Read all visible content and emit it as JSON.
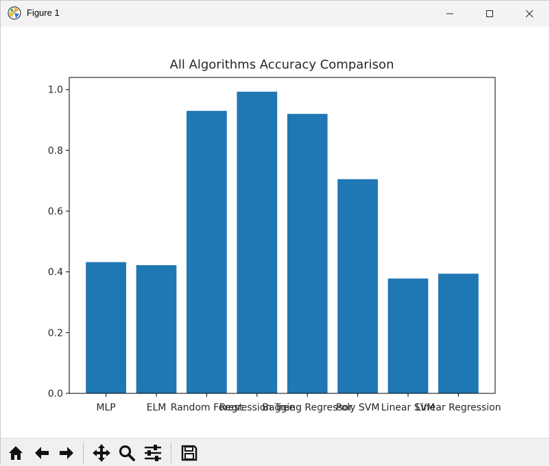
{
  "window": {
    "title": "Figure 1"
  },
  "toolbar": {
    "buttons": [
      {
        "icon": "home-icon"
      },
      {
        "icon": "back-arrow-icon"
      },
      {
        "icon": "forward-arrow-icon"
      },
      {
        "icon": "pan-icon"
      },
      {
        "icon": "zoom-icon"
      },
      {
        "icon": "configure-subplots-icon"
      },
      {
        "icon": "save-icon"
      }
    ]
  },
  "colors": {
    "bar": "#1f77b4",
    "axes": "#000000",
    "text": "#262626"
  },
  "chart_data": {
    "type": "bar",
    "title": "All Algorithms Accuracy Comparison",
    "xlabel": "",
    "ylabel": "",
    "categories": [
      "MLP",
      "ELM",
      "Random Forest",
      "Regression Tree",
      "Bagging Regressor",
      "Poly SVM",
      "Linear SVM",
      "Linear Regression"
    ],
    "values": [
      0.432,
      0.422,
      0.93,
      0.993,
      0.92,
      0.705,
      0.378,
      0.394
    ],
    "ylim": [
      0,
      1.04
    ],
    "yticks": [
      "0.0",
      "0.2",
      "0.4",
      "0.6",
      "0.8",
      "1.0"
    ],
    "grid": false
  }
}
